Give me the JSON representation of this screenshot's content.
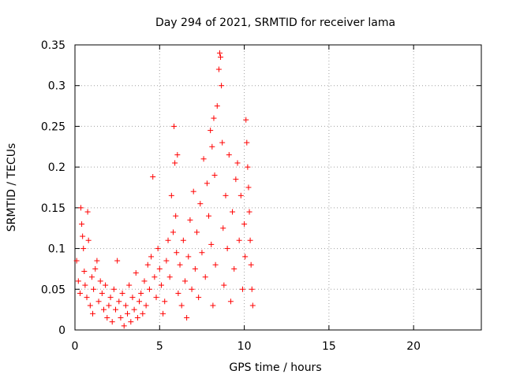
{
  "chart_data": {
    "type": "scatter",
    "title": "Day 294 of 2021, SRMTID for receiver lama",
    "xlabel": "GPS time / hours",
    "ylabel": "SRMTID / TECUs",
    "xlim": [
      0,
      24
    ],
    "ylim": [
      0,
      0.35
    ],
    "xticks": [
      0,
      5,
      10,
      15,
      20
    ],
    "xtick_labels": [
      "0",
      "5",
      "10",
      "15",
      "20"
    ],
    "yticks": [
      0,
      0.05,
      0.1,
      0.15,
      0.2,
      0.25,
      0.3,
      0.35
    ],
    "ytick_labels": [
      "0",
      "0.05",
      "0.1",
      "0.15",
      "0.2",
      "0.25",
      "0.3",
      "0.35"
    ],
    "grid": true,
    "marker": "+",
    "color": "#ff0000",
    "series": [
      {
        "name": "SRMTID",
        "points": [
          [
            0.1,
            0.085
          ],
          [
            0.2,
            0.06
          ],
          [
            0.3,
            0.045
          ],
          [
            0.35,
            0.15
          ],
          [
            0.4,
            0.13
          ],
          [
            0.45,
            0.115
          ],
          [
            0.5,
            0.1
          ],
          [
            0.55,
            0.072
          ],
          [
            0.6,
            0.055
          ],
          [
            0.7,
            0.04
          ],
          [
            0.75,
            0.145
          ],
          [
            0.8,
            0.11
          ],
          [
            0.9,
            0.03
          ],
          [
            1.0,
            0.065
          ],
          [
            1.05,
            0.02
          ],
          [
            1.1,
            0.05
          ],
          [
            1.2,
            0.075
          ],
          [
            1.3,
            0.085
          ],
          [
            1.4,
            0.035
          ],
          [
            1.5,
            0.06
          ],
          [
            1.6,
            0.045
          ],
          [
            1.7,
            0.025
          ],
          [
            1.8,
            0.055
          ],
          [
            1.9,
            0.015
          ],
          [
            2.0,
            0.03
          ],
          [
            2.1,
            0.04
          ],
          [
            2.2,
            0.01
          ],
          [
            2.3,
            0.05
          ],
          [
            2.4,
            0.025
          ],
          [
            2.5,
            0.085
          ],
          [
            2.6,
            0.035
          ],
          [
            2.7,
            0.015
          ],
          [
            2.8,
            0.045
          ],
          [
            2.9,
            0.005
          ],
          [
            3.0,
            0.03
          ],
          [
            3.1,
            0.02
          ],
          [
            3.2,
            0.055
          ],
          [
            3.3,
            0.01
          ],
          [
            3.4,
            0.04
          ],
          [
            3.5,
            0.025
          ],
          [
            3.6,
            0.07
          ],
          [
            3.7,
            0.015
          ],
          [
            3.8,
            0.035
          ],
          [
            3.9,
            0.045
          ],
          [
            4.0,
            0.02
          ],
          [
            4.1,
            0.06
          ],
          [
            4.2,
            0.03
          ],
          [
            4.3,
            0.08
          ],
          [
            4.4,
            0.05
          ],
          [
            4.5,
            0.09
          ],
          [
            4.6,
            0.188
          ],
          [
            4.7,
            0.065
          ],
          [
            4.8,
            0.04
          ],
          [
            4.9,
            0.1
          ],
          [
            5.0,
            0.075
          ],
          [
            5.1,
            0.055
          ],
          [
            5.2,
            0.02
          ],
          [
            5.3,
            0.035
          ],
          [
            5.4,
            0.085
          ],
          [
            5.5,
            0.11
          ],
          [
            5.6,
            0.065
          ],
          [
            5.7,
            0.165
          ],
          [
            5.8,
            0.12
          ],
          [
            5.85,
            0.25
          ],
          [
            5.9,
            0.205
          ],
          [
            5.95,
            0.14
          ],
          [
            6.0,
            0.095
          ],
          [
            6.05,
            0.215
          ],
          [
            6.1,
            0.045
          ],
          [
            6.2,
            0.08
          ],
          [
            6.3,
            0.03
          ],
          [
            6.4,
            0.11
          ],
          [
            6.5,
            0.06
          ],
          [
            6.6,
            0.015
          ],
          [
            6.7,
            0.09
          ],
          [
            6.8,
            0.135
          ],
          [
            6.9,
            0.05
          ],
          [
            7.0,
            0.17
          ],
          [
            7.1,
            0.075
          ],
          [
            7.2,
            0.12
          ],
          [
            7.3,
            0.04
          ],
          [
            7.4,
            0.155
          ],
          [
            7.5,
            0.095
          ],
          [
            7.6,
            0.21
          ],
          [
            7.7,
            0.065
          ],
          [
            7.8,
            0.18
          ],
          [
            7.9,
            0.14
          ],
          [
            8.0,
            0.245
          ],
          [
            8.05,
            0.105
          ],
          [
            8.1,
            0.225
          ],
          [
            8.15,
            0.03
          ],
          [
            8.2,
            0.26
          ],
          [
            8.25,
            0.19
          ],
          [
            8.3,
            0.08
          ],
          [
            8.4,
            0.275
          ],
          [
            8.5,
            0.32
          ],
          [
            8.55,
            0.34
          ],
          [
            8.6,
            0.335
          ],
          [
            8.65,
            0.3
          ],
          [
            8.7,
            0.23
          ],
          [
            8.75,
            0.125
          ],
          [
            8.8,
            0.055
          ],
          [
            8.9,
            0.165
          ],
          [
            9.0,
            0.1
          ],
          [
            9.1,
            0.215
          ],
          [
            9.2,
            0.035
          ],
          [
            9.3,
            0.145
          ],
          [
            9.4,
            0.075
          ],
          [
            9.5,
            0.185
          ],
          [
            9.6,
            0.205
          ],
          [
            9.7,
            0.11
          ],
          [
            9.8,
            0.165
          ],
          [
            9.9,
            0.05
          ],
          [
            10.0,
            0.13
          ],
          [
            10.05,
            0.09
          ],
          [
            10.1,
            0.258
          ],
          [
            10.15,
            0.23
          ],
          [
            10.2,
            0.2
          ],
          [
            10.25,
            0.175
          ],
          [
            10.3,
            0.145
          ],
          [
            10.35,
            0.11
          ],
          [
            10.4,
            0.08
          ],
          [
            10.45,
            0.05
          ],
          [
            10.5,
            0.03
          ]
        ]
      }
    ]
  }
}
